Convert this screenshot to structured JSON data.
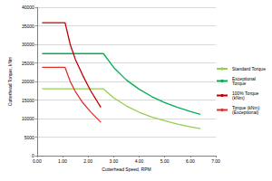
{
  "chart_data": {
    "type": "line",
    "x_label": "Cutterhead Speed, RPM",
    "y_label": "Cutterhead Torque, kNm",
    "xlim": [
      0,
      7
    ],
    "xticks": [
      {
        "value": 0,
        "label": "0.00"
      },
      {
        "value": 1,
        "label": "1.00"
      },
      {
        "value": 2,
        "label": "2.00"
      },
      {
        "value": 3,
        "label": "3.00"
      },
      {
        "value": 4,
        "label": "4.00"
      },
      {
        "value": 5,
        "label": "5.00"
      },
      {
        "value": 6,
        "label": "6.00"
      },
      {
        "value": 7,
        "label": "7.00"
      }
    ],
    "ylim": [
      0,
      40000
    ],
    "yticks": [
      0,
      5000,
      10000,
      15000,
      20000,
      25000,
      30000,
      35000,
      40000
    ],
    "grid": true,
    "legend": "right",
    "series": [
      {
        "name": "Standard Torque",
        "color": "#92d050",
        "x": [
          0.2,
          2.6,
          3.0,
          3.5,
          4.0,
          4.5,
          5.0,
          5.5,
          6.0,
          6.4
        ],
        "values": [
          18000,
          18000,
          15600,
          13400,
          11700,
          10400,
          9400,
          8500,
          7800,
          7300
        ]
      },
      {
        "name": "Exceptional Torque",
        "color": "#00b050",
        "x": [
          0.2,
          2.6,
          3.0,
          3.5,
          4.0,
          4.5,
          5.0,
          5.5,
          6.0,
          6.4
        ],
        "values": [
          27500,
          27500,
          23800,
          20400,
          17900,
          15900,
          14300,
          13000,
          11900,
          11100
        ]
      },
      {
        "name": "100% Torque (kNm)",
        "color": "#c00000",
        "x": [
          0.2,
          1.1,
          1.3,
          1.5,
          1.8,
          2.1,
          2.5
        ],
        "values": [
          35800,
          35800,
          30000,
          26000,
          21500,
          17500,
          13000
        ]
      },
      {
        "name": "Torque (kNm) (Exceptional)",
        "color": "#e0302a",
        "x": [
          0.2,
          1.1,
          1.3,
          1.5,
          1.8,
          2.1,
          2.5
        ],
        "values": [
          23800,
          23800,
          20000,
          17300,
          14200,
          11800,
          9000
        ]
      }
    ]
  }
}
